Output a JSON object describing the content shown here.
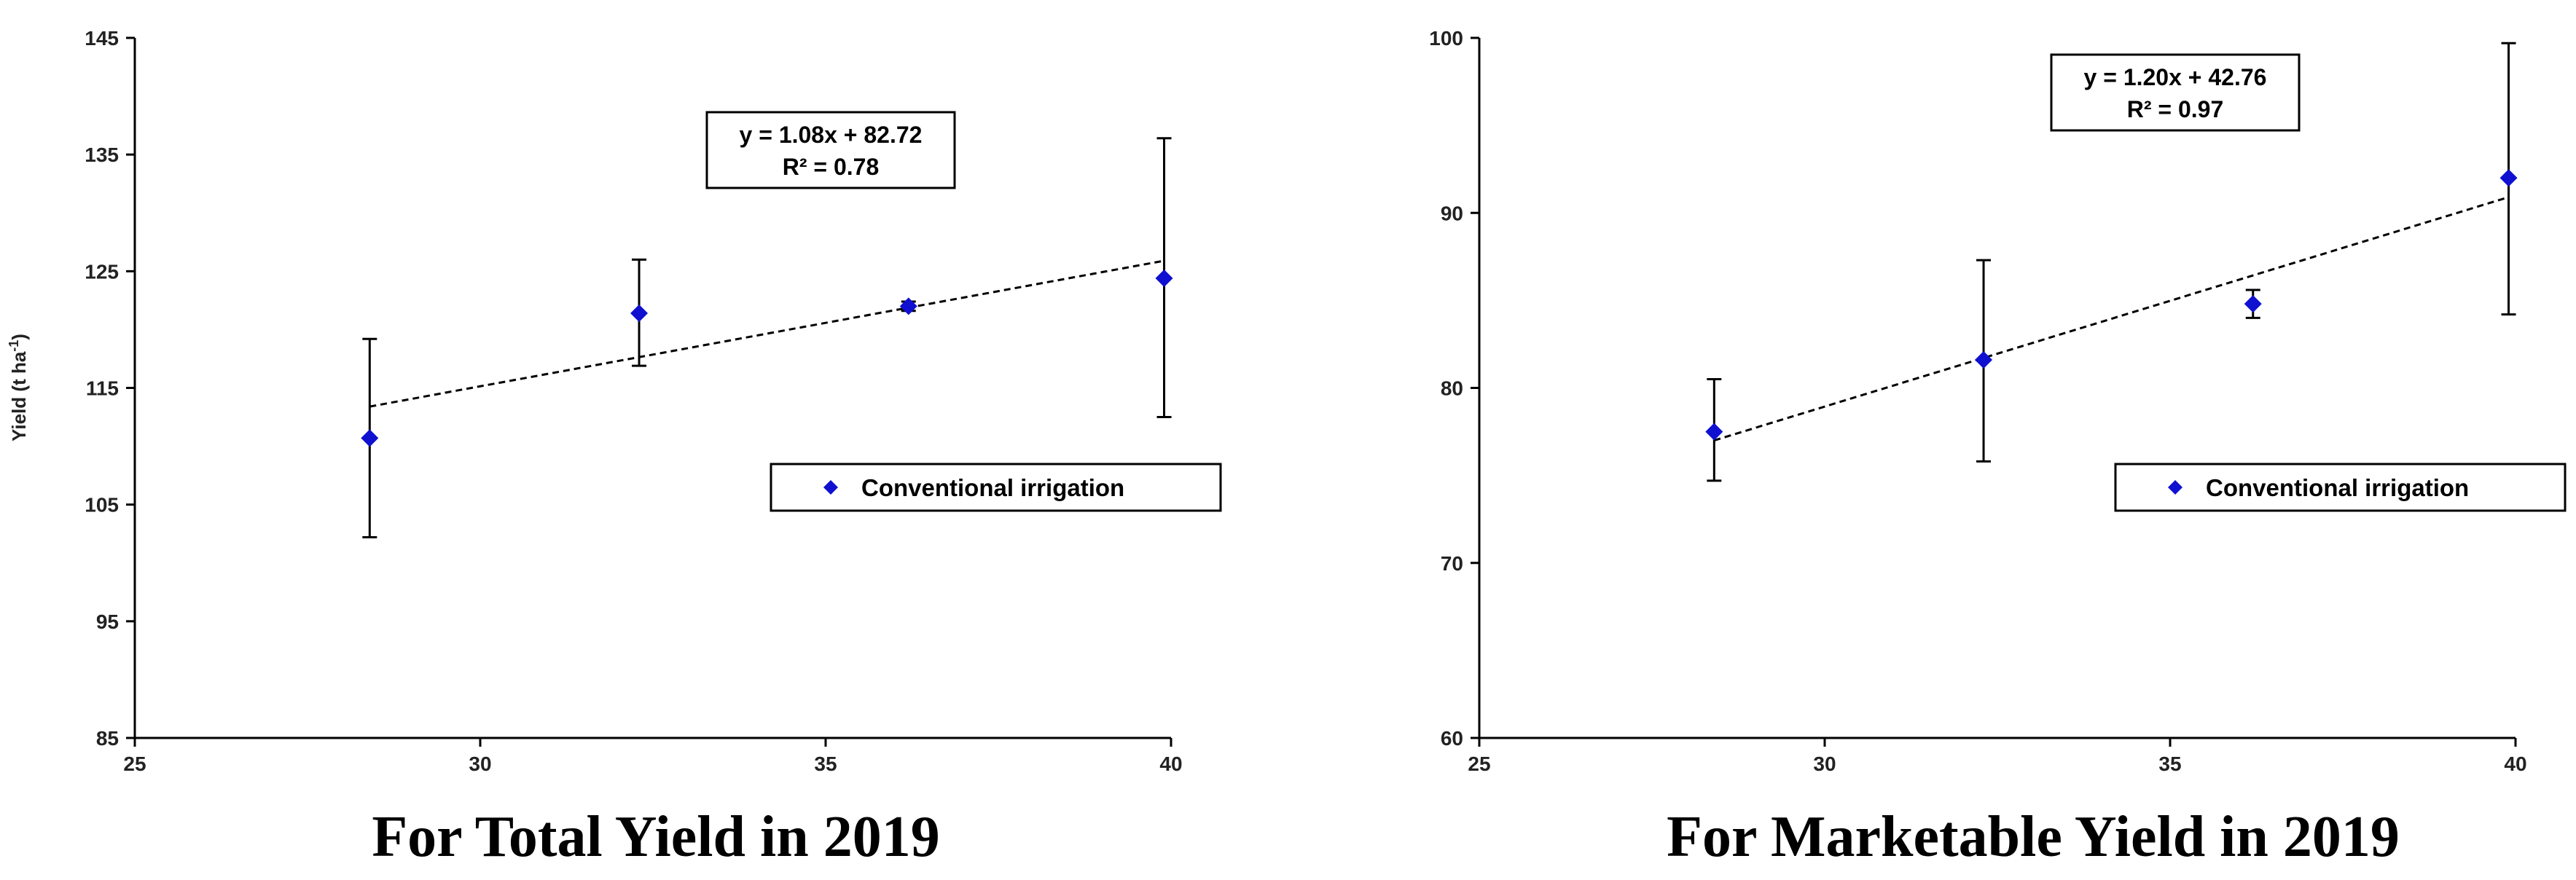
{
  "chart_data": [
    {
      "type": "scatter",
      "title": "",
      "caption": "For Total Yield in 2019",
      "xlabel": "",
      "ylabel": "Yield (t ha",
      "ylabel_sup": "-1",
      "ylabel_close": ")",
      "xlim": [
        25,
        40
      ],
      "ylim": [
        85,
        145
      ],
      "xticks": [
        25,
        30,
        35,
        40
      ],
      "yticks": [
        85,
        95,
        105,
        115,
        125,
        135,
        145
      ],
      "grid": false,
      "series": [
        {
          "name": "Conventional irrigation",
          "color": "#1010d0",
          "marker": "diamond",
          "points": [
            {
              "x": 28.4,
              "y": 110.7,
              "err_low": 102.2,
              "err_high": 119.2
            },
            {
              "x": 32.3,
              "y": 121.4,
              "err_low": 116.9,
              "err_high": 126.0
            },
            {
              "x": 36.2,
              "y": 122.0,
              "err_low": 121.6,
              "err_high": 122.4
            },
            {
              "x": 39.9,
              "y": 124.4,
              "err_low": 112.5,
              "err_high": 136.4
            }
          ]
        }
      ],
      "trendline": {
        "x_start": 28.4,
        "y_start": 113.4,
        "x_end": 39.9,
        "y_end": 125.9,
        "equation": "y = 1.08x + 82.72",
        "r2": "R² = 0.78"
      },
      "legend_position": "middle-right"
    },
    {
      "type": "scatter",
      "title": "",
      "caption": "For Marketable Yield in 2019",
      "xlabel": "",
      "ylabel": "",
      "xlim": [
        25,
        40
      ],
      "ylim": [
        60,
        100
      ],
      "xticks": [
        25,
        30,
        35,
        40
      ],
      "yticks": [
        60,
        70,
        80,
        90,
        100
      ],
      "grid": false,
      "series": [
        {
          "name": "Conventional irrigation",
          "color": "#1010d0",
          "marker": "diamond",
          "points": [
            {
              "x": 28.4,
              "y": 77.5,
              "err_low": 74.7,
              "err_high": 80.5
            },
            {
              "x": 32.3,
              "y": 81.6,
              "err_low": 75.8,
              "err_high": 87.3
            },
            {
              "x": 36.2,
              "y": 84.8,
              "err_low": 84.0,
              "err_high": 85.6
            },
            {
              "x": 39.9,
              "y": 92.0,
              "err_low": 84.2,
              "err_high": 99.7
            }
          ]
        }
      ],
      "trendline": {
        "x_start": 28.4,
        "y_start": 77.0,
        "x_end": 39.9,
        "y_end": 90.9,
        "equation": "y = 1.20x + 42.76",
        "r2": "R² = 0.97"
      },
      "legend_position": "middle-right"
    }
  ]
}
